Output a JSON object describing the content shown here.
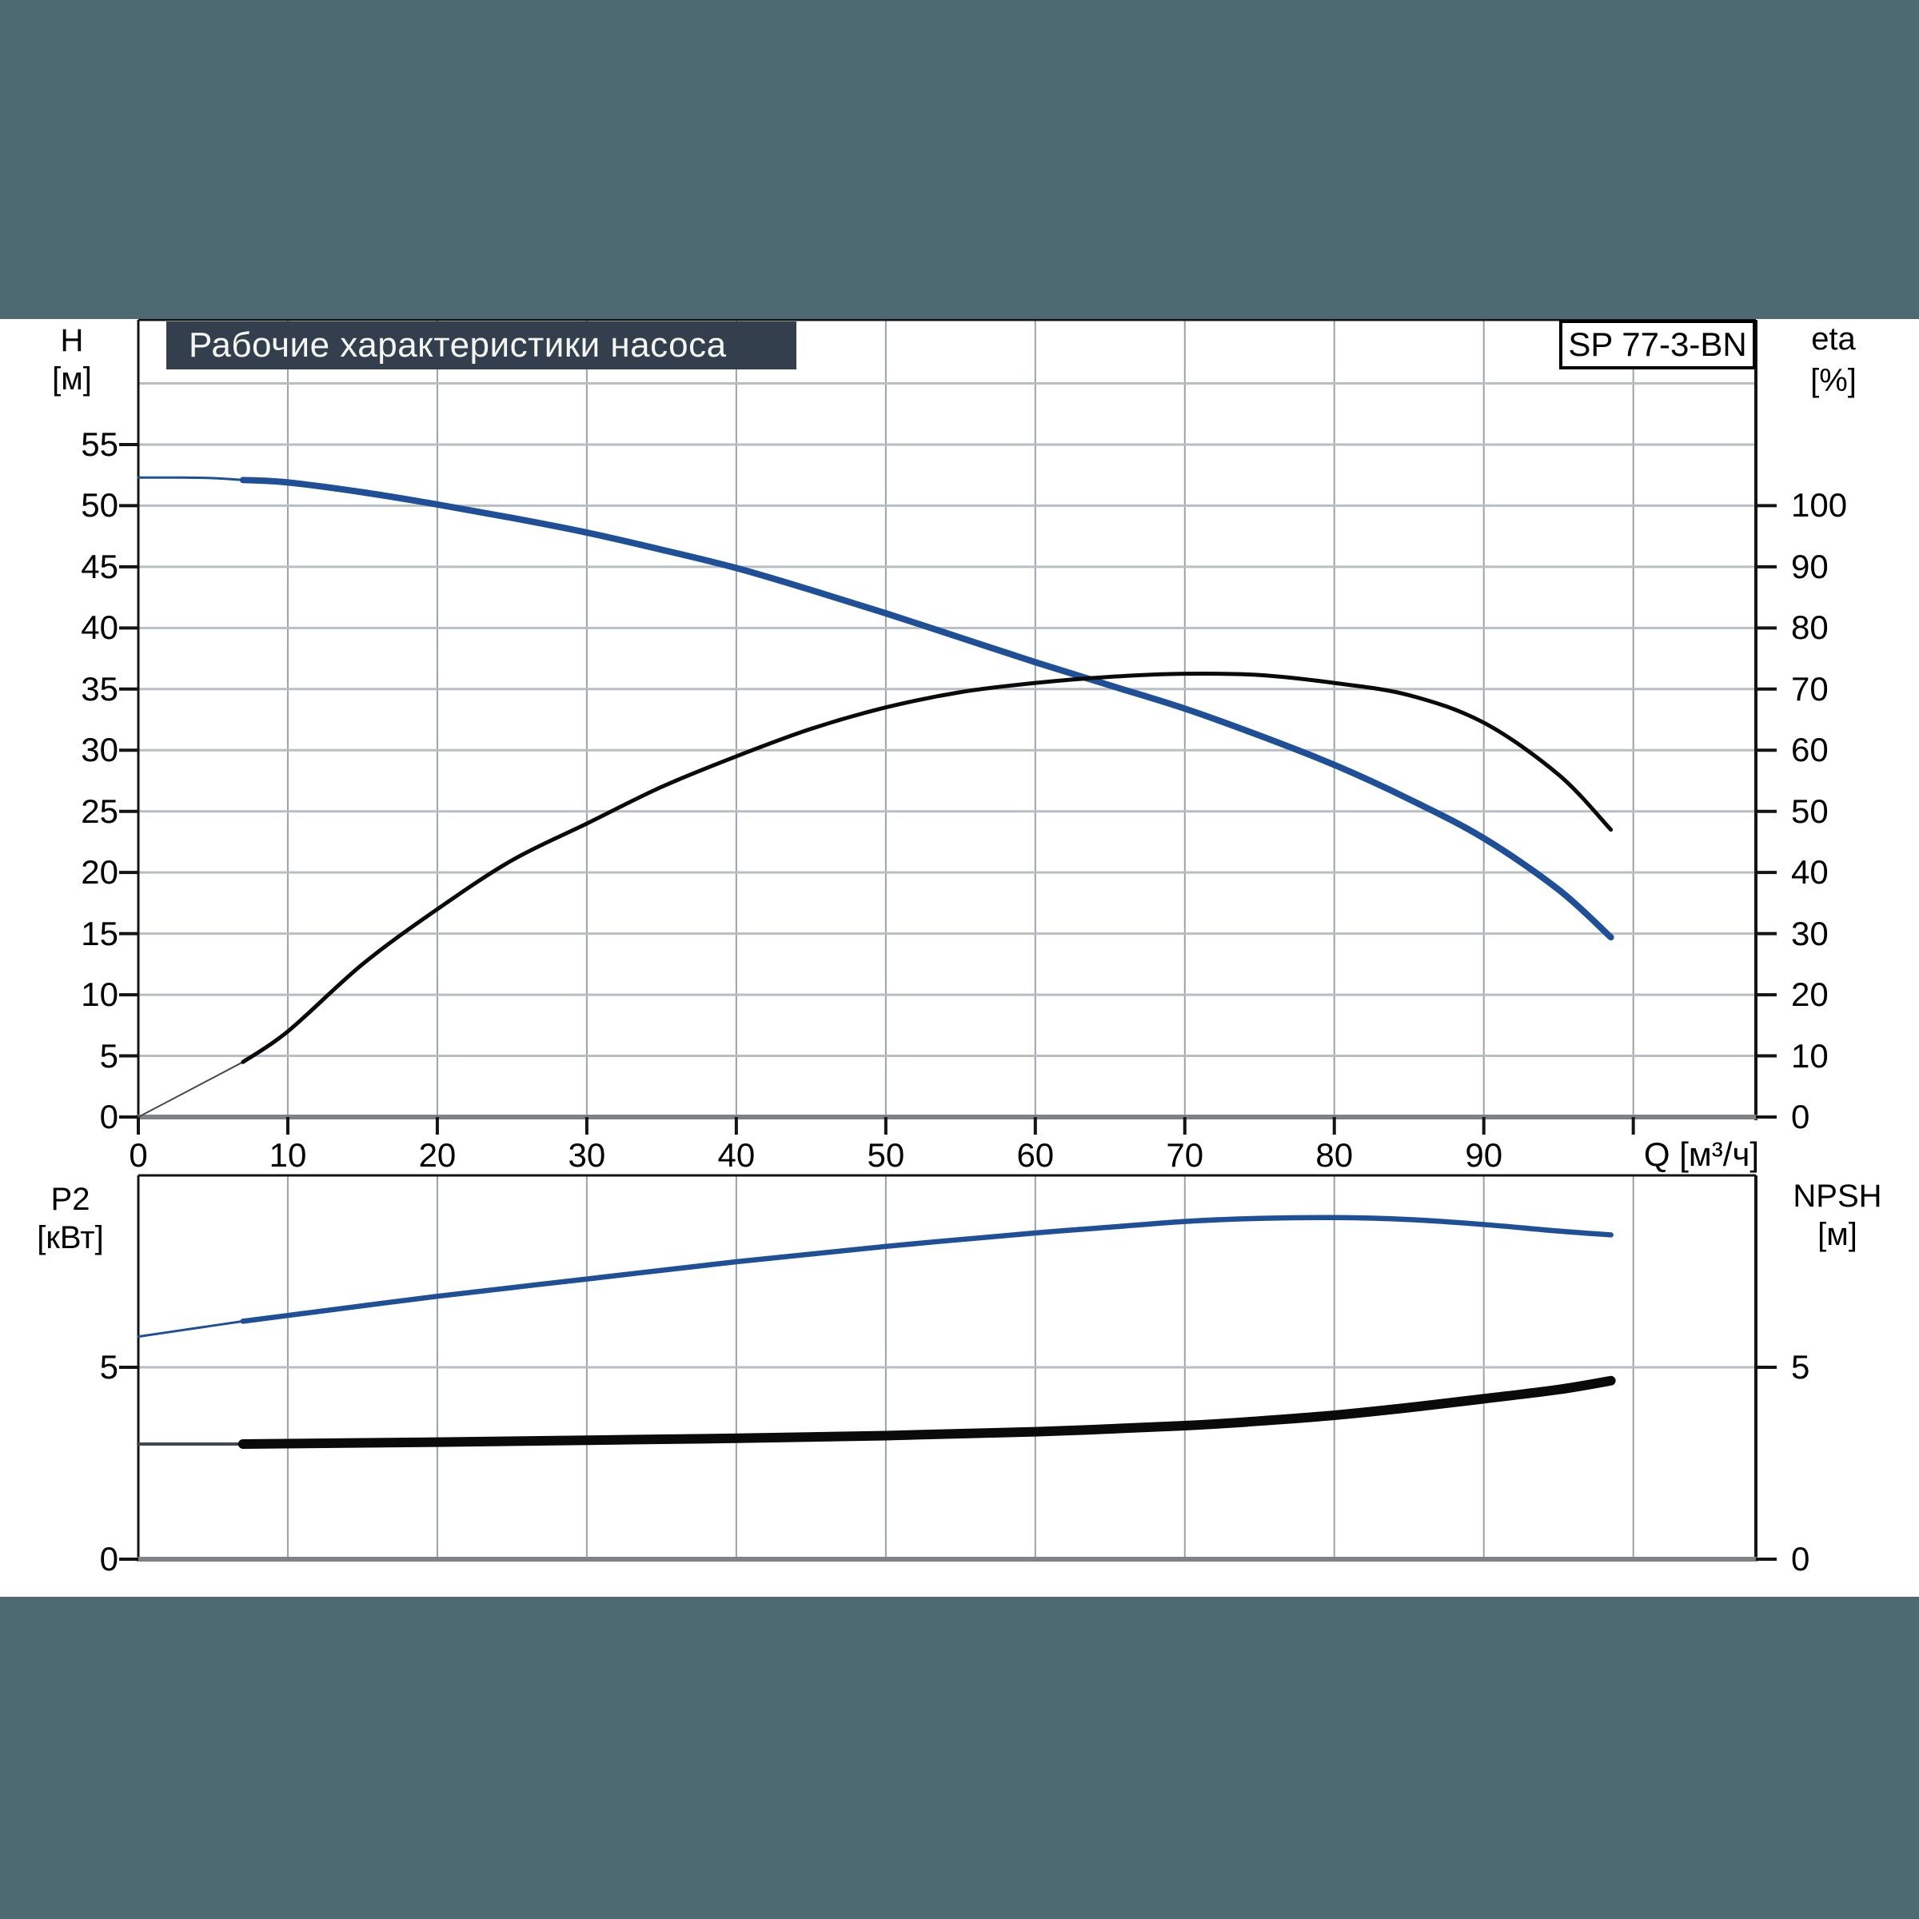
{
  "header": {
    "title": "Рабочие характеристики насоса",
    "model": "SP 77-3-BN"
  },
  "labels": {
    "left_top_quantity": "H",
    "left_top_unit": "[м]",
    "right_top_quantity": "eta",
    "right_top_unit": "[%]",
    "left_bottom_quantity": "P2",
    "left_bottom_unit": "[кВт]",
    "right_bottom_quantity": "NPSH",
    "right_bottom_unit": "[м]",
    "x_axis_title": "Q [м³/ч]"
  },
  "colors": {
    "band_teal": "#4d6a73",
    "title_bar_bg": "#333f4d",
    "title_text": "#f4f6f2",
    "curve_blue": "#1e4f97",
    "curve_black": "#0a0a0a",
    "curve_thin_gray": "#43484e",
    "grid_horizontal": "#b9bec3",
    "grid_vertical": "#9ba2aa",
    "frame_black": "#141414",
    "baseline_gray": "#7d8287"
  },
  "chart_data": [
    {
      "type": "line",
      "title": "H-Q and efficiency curves",
      "xlabel": "Q [м³/ч]",
      "x_range": [
        0,
        108.2
      ],
      "left_axis": {
        "label": "H [м]",
        "range": [
          0,
          65.2
        ],
        "ticks": [
          0,
          5,
          10,
          15,
          20,
          25,
          30,
          35,
          40,
          45,
          50,
          55
        ]
      },
      "right_axis": {
        "label": "eta [%]",
        "range": [
          0,
          130.4
        ],
        "ticks": [
          0,
          10,
          20,
          30,
          40,
          50,
          60,
          70,
          80,
          90,
          100
        ]
      },
      "x_label_ticks": [
        0,
        10,
        20,
        30,
        40,
        50,
        60,
        70,
        80,
        90
      ],
      "x_mark_ticks": [
        0,
        10,
        20,
        30,
        40,
        50,
        60,
        70,
        80,
        90,
        100
      ],
      "x_gridlines": [
        10,
        20,
        30,
        40,
        50,
        60,
        70,
        80,
        90,
        100
      ],
      "h_gridlines": [
        5,
        10,
        15,
        20,
        25,
        30,
        35,
        40,
        45,
        50,
        55,
        60
      ],
      "series": [
        {
          "name": "head-thin-start",
          "axis": "h",
          "color_key": "curve_blue",
          "width": 3,
          "points": [
            [
              0,
              52.3
            ],
            [
              3,
              52.3
            ],
            [
              5,
              52.25
            ],
            [
              7,
              52.1
            ]
          ]
        },
        {
          "name": "head",
          "axis": "h",
          "color_key": "curve_blue",
          "width": 8,
          "points": [
            [
              7,
              52.1
            ],
            [
              10,
              51.9
            ],
            [
              15,
              51.1
            ],
            [
              20,
              50.1
            ],
            [
              25,
              49.0
            ],
            [
              30,
              47.8
            ],
            [
              35,
              46.4
            ],
            [
              40,
              44.9
            ],
            [
              45,
              43.1
            ],
            [
              50,
              41.2
            ],
            [
              55,
              39.2
            ],
            [
              60,
              37.2
            ],
            [
              65,
              35.3
            ],
            [
              70,
              33.4
            ],
            [
              75,
              31.2
            ],
            [
              80,
              28.8
            ],
            [
              85,
              26.0
            ],
            [
              90,
              22.8
            ],
            [
              95,
              18.6
            ],
            [
              98.5,
              14.7
            ]
          ]
        },
        {
          "name": "eta-thin-start",
          "axis": "eta",
          "color_key": "curve_thin_gray",
          "width": 2,
          "points": [
            [
              0,
              0
            ],
            [
              3.5,
              4.5
            ],
            [
              7,
              9
            ]
          ]
        },
        {
          "name": "eta",
          "axis": "eta",
          "color_key": "curve_black",
          "width": 5,
          "points": [
            [
              7,
              9
            ],
            [
              10,
              14
            ],
            [
              15,
              25
            ],
            [
              20,
              34
            ],
            [
              25,
              42
            ],
            [
              30,
              48
            ],
            [
              35,
              54
            ],
            [
              40,
              59
            ],
            [
              45,
              63.5
            ],
            [
              50,
              67
            ],
            [
              55,
              69.5
            ],
            [
              60,
              71
            ],
            [
              65,
              72
            ],
            [
              70,
              72.5
            ],
            [
              75,
              72.3
            ],
            [
              80,
              71
            ],
            [
              85,
              69
            ],
            [
              90,
              64.5
            ],
            [
              95,
              56
            ],
            [
              98.5,
              47
            ]
          ]
        }
      ]
    },
    {
      "type": "line",
      "title": "Power and NPSH curves",
      "xlabel": "Q [м³/ч]",
      "x_range": [
        0,
        108.2
      ],
      "left_axis": {
        "label": "P2 [кВт]",
        "range": [
          0,
          10
        ],
        "ticks": [
          0,
          5
        ]
      },
      "right_axis": {
        "label": "NPSH [м]",
        "range": [
          0,
          10
        ],
        "ticks": [
          0,
          5
        ]
      },
      "x_gridlines": [
        10,
        20,
        30,
        40,
        50,
        60,
        70,
        80,
        90,
        100
      ],
      "h_gridlines": [
        5
      ],
      "series": [
        {
          "name": "p2-thin-start",
          "axis": "p",
          "color_key": "curve_blue",
          "width": 3,
          "points": [
            [
              0,
              5.8
            ],
            [
              3.5,
              6.0
            ],
            [
              7,
              6.2
            ]
          ]
        },
        {
          "name": "p2",
          "axis": "p",
          "color_key": "curve_blue",
          "width": 6.5,
          "points": [
            [
              7,
              6.2
            ],
            [
              10,
              6.35
            ],
            [
              20,
              6.85
            ],
            [
              30,
              7.3
            ],
            [
              40,
              7.75
            ],
            [
              50,
              8.15
            ],
            [
              60,
              8.5
            ],
            [
              65,
              8.65
            ],
            [
              70,
              8.8
            ],
            [
              75,
              8.88
            ],
            [
              80,
              8.9
            ],
            [
              85,
              8.85
            ],
            [
              90,
              8.72
            ],
            [
              95,
              8.55
            ],
            [
              98.5,
              8.45
            ]
          ]
        },
        {
          "name": "npsh-thin-start",
          "axis": "p",
          "color_key": "curve_thin_gray",
          "width": 4,
          "points": [
            [
              0,
              3.0
            ],
            [
              3.5,
              3.0
            ],
            [
              7,
              3.0
            ]
          ]
        },
        {
          "name": "npsh",
          "axis": "p",
          "color_key": "curve_black",
          "width": 12,
          "points": [
            [
              7,
              3.0
            ],
            [
              20,
              3.05
            ],
            [
              30,
              3.1
            ],
            [
              40,
              3.15
            ],
            [
              50,
              3.22
            ],
            [
              60,
              3.32
            ],
            [
              70,
              3.48
            ],
            [
              75,
              3.6
            ],
            [
              80,
              3.75
            ],
            [
              85,
              3.95
            ],
            [
              90,
              4.18
            ],
            [
              95,
              4.42
            ],
            [
              98.5,
              4.65
            ]
          ]
        }
      ]
    }
  ]
}
